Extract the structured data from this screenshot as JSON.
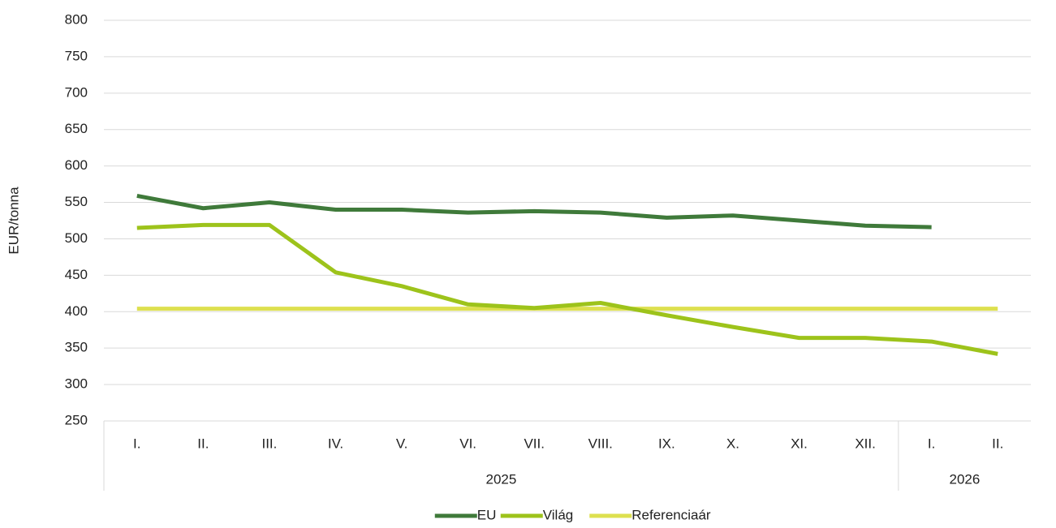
{
  "chart_data": {
    "type": "line",
    "y_label": "EUR/tonna",
    "category_groups": [
      {
        "name": "2025",
        "categories": [
          "I.",
          "II.",
          "III.",
          "IV.",
          "V.",
          "VI.",
          "VII.",
          "VIII.",
          "IX.",
          "X.",
          "XI.",
          "XII."
        ]
      },
      {
        "name": "2026",
        "categories": [
          "I.",
          "II."
        ]
      }
    ],
    "series": [
      {
        "name": "EU",
        "color": "#3f7a3a",
        "values": [
          559,
          542,
          550,
          540,
          540,
          536,
          538,
          536,
          529,
          532,
          525,
          518,
          516,
          null
        ]
      },
      {
        "name": "Világ",
        "color": "#9dc31b",
        "values": [
          515,
          519,
          519,
          454,
          435,
          410,
          405,
          412,
          395,
          379,
          364,
          364,
          359,
          342
        ]
      },
      {
        "name": "Referenciaár",
        "color": "#dde04f",
        "values": [
          404,
          404,
          404,
          404,
          404,
          404,
          404,
          404,
          404,
          404,
          404,
          404,
          404,
          404
        ]
      }
    ],
    "ylim": [
      250,
      800
    ],
    "yticks": [
      250,
      300,
      350,
      400,
      450,
      500,
      550,
      600,
      650,
      700,
      750,
      800
    ],
    "grid": true,
    "legend": "bottom"
  }
}
